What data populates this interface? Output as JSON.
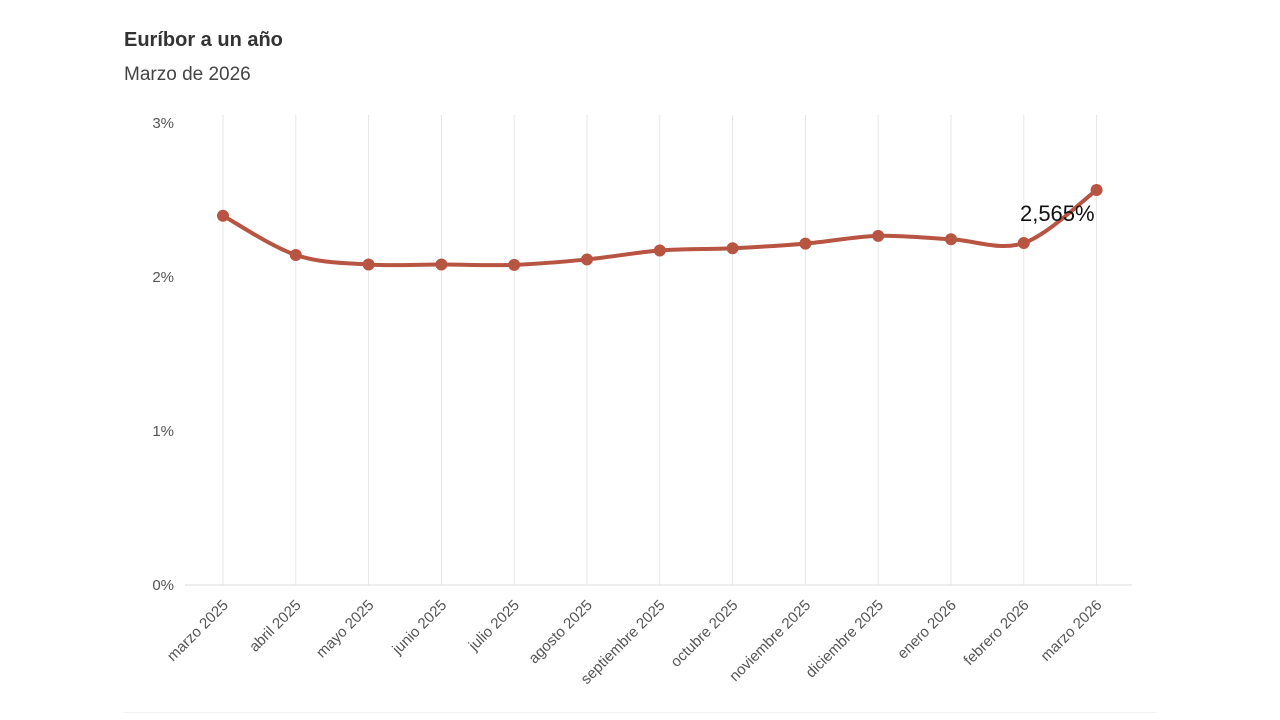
{
  "chart_data": {
    "type": "line",
    "title": "Euríbor a un año",
    "subtitle": "Marzo de 2026",
    "xlabel": "",
    "ylabel": "",
    "categories": [
      "marzo 2025",
      "abril 2025",
      "mayo 2025",
      "junio 2025",
      "julio 2025",
      "agosto 2025",
      "septiembre 2025",
      "octubre 2025",
      "noviembre 2025",
      "diciembre 2025",
      "enero 2026",
      "febrero 2026",
      "marzo 2026"
    ],
    "series": [
      {
        "values": [
          2.398,
          2.143,
          2.081,
          2.081,
          2.079,
          2.114,
          2.172,
          2.187,
          2.217,
          2.267,
          2.245,
          2.221,
          2.565
        ],
        "color": "#b85442"
      }
    ],
    "ylim": [
      0,
      3
    ],
    "yticks": [
      0,
      1,
      2,
      3
    ],
    "ytick_labels": [
      "0%",
      "1%",
      "2%",
      "3%"
    ],
    "grid": {
      "vertical": true,
      "horizontal": false
    },
    "x_tick_rotation": "rotated -45°",
    "annotations": [
      {
        "category": "marzo 2026",
        "text": "2,565%"
      }
    ],
    "legend": "none"
  },
  "colors": {
    "line": "#b85442",
    "grid": "#e6e6e6",
    "axis": "#dddddd",
    "text": "#555555"
  }
}
